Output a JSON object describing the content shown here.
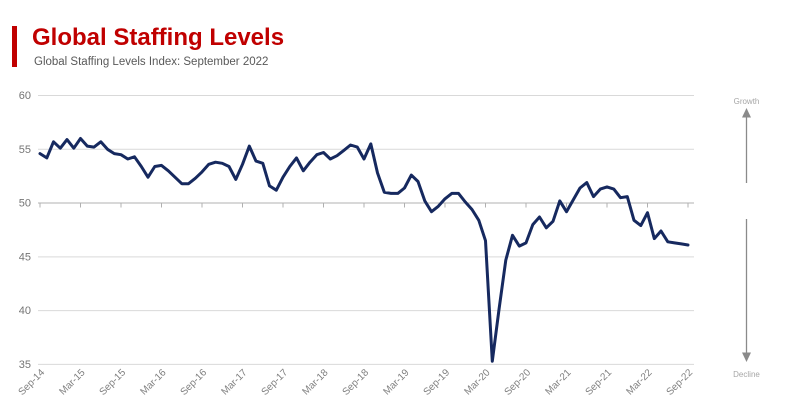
{
  "header": {
    "title": "Global Staffing Levels",
    "subtitle": "Global Staffing Levels Index: September 2022",
    "title_color": "#C00000",
    "subtitle_color": "#595959",
    "accent_color": "#C00000"
  },
  "chart_data": {
    "type": "line",
    "title": "Global Staffing Levels",
    "subtitle": "Global Staffing Levels Index: September 2022",
    "x_axis": {
      "start": "Sep-14",
      "end": "Sep-22",
      "interval": "monthly",
      "tick_labels": [
        "Sep-14",
        "Mar-15",
        "Sep-15",
        "Mar-16",
        "Sep-16",
        "Mar-17",
        "Sep-17",
        "Mar-18",
        "Sep-18",
        "Mar-19",
        "Sep-19",
        "Mar-20",
        "Sep-20",
        "Mar-21",
        "Sep-21",
        "Mar-22",
        "Sep-22"
      ]
    },
    "y_axis": {
      "range": [
        35,
        60
      ],
      "ticks": [
        60,
        55,
        50,
        45,
        40,
        35
      ],
      "axis_crosses_at": 50
    },
    "grid": "horizontal",
    "legend": "none",
    "annotations": {
      "growth": "Growth",
      "decline": "Decline"
    },
    "annotation_color": "#a6a6a6",
    "arrow_color": "#8a8a8a",
    "gridline_color": "#d9d9d9",
    "axisline_color": "#b0b0b0",
    "tick_label_color": "#7f7f7f",
    "series": [
      {
        "name": "Global Staffing Levels Index",
        "color": "#16295F",
        "values": [
          54.6,
          54.2,
          55.7,
          55.1,
          55.9,
          55.1,
          56.0,
          55.3,
          55.2,
          55.7,
          55.0,
          54.6,
          54.5,
          54.1,
          54.3,
          53.4,
          52.4,
          53.4,
          53.5,
          53.0,
          52.4,
          51.8,
          51.8,
          52.3,
          52.9,
          53.6,
          53.8,
          53.7,
          53.4,
          52.2,
          53.6,
          55.3,
          53.9,
          53.7,
          51.6,
          51.2,
          52.4,
          53.4,
          54.2,
          53.0,
          53.8,
          54.5,
          54.7,
          54.1,
          54.4,
          54.9,
          55.4,
          55.2,
          54.1,
          55.5,
          52.8,
          51.0,
          50.9,
          50.9,
          51.4,
          52.6,
          52.0,
          50.2,
          49.2,
          49.7,
          50.4,
          50.9,
          50.9,
          50.1,
          49.4,
          48.4,
          46.5,
          35.3,
          40.1,
          44.7,
          47.0,
          46.0,
          46.3,
          48.0,
          48.7,
          47.7,
          48.3,
          50.2,
          49.2,
          50.3,
          51.4,
          51.9,
          50.6,
          51.3,
          51.5,
          51.3,
          50.5,
          50.6,
          48.4,
          47.9,
          49.1,
          46.7,
          47.4,
          46.4,
          46.3,
          46.2,
          46.1
        ]
      }
    ]
  }
}
